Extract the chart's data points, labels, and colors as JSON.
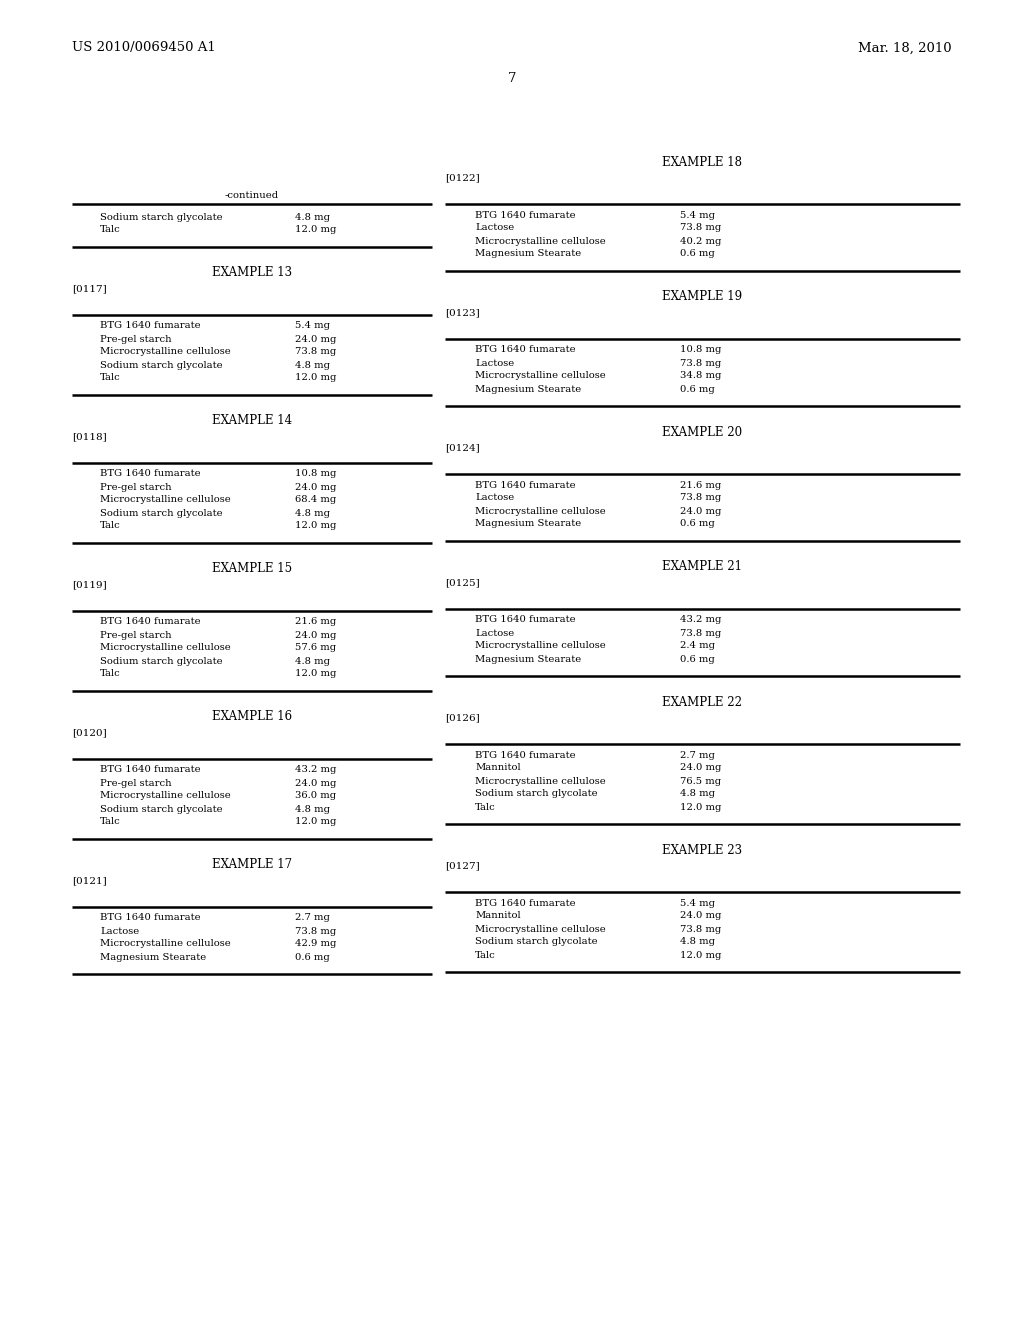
{
  "header_left": "US 2010/0069450 A1",
  "header_right": "Mar. 18, 2010",
  "page_number": "7",
  "background_color": "#ffffff",
  "text_color": "#000000",
  "left_column": {
    "continued_label": "-continued",
    "sections": [
      {
        "type": "table_end",
        "rows": [
          [
            "Sodium starch glycolate",
            "4.8 mg"
          ],
          [
            "Talc",
            "12.0 mg"
          ]
        ]
      },
      {
        "type": "example",
        "example_title": "EXAMPLE 13",
        "ref_label": "[0117]",
        "rows": [
          [
            "BTG 1640 fumarate",
            "5.4 mg"
          ],
          [
            "Pre-gel starch",
            "24.0 mg"
          ],
          [
            "Microcrystalline cellulose",
            "73.8 mg"
          ],
          [
            "Sodium starch glycolate",
            "4.8 mg"
          ],
          [
            "Talc",
            "12.0 mg"
          ]
        ]
      },
      {
        "type": "example",
        "example_title": "EXAMPLE 14",
        "ref_label": "[0118]",
        "rows": [
          [
            "BTG 1640 fumarate",
            "10.8 mg"
          ],
          [
            "Pre-gel starch",
            "24.0 mg"
          ],
          [
            "Microcrystalline cellulose",
            "68.4 mg"
          ],
          [
            "Sodium starch glycolate",
            "4.8 mg"
          ],
          [
            "Talc",
            "12.0 mg"
          ]
        ]
      },
      {
        "type": "example",
        "example_title": "EXAMPLE 15",
        "ref_label": "[0119]",
        "rows": [
          [
            "BTG 1640 fumarate",
            "21.6 mg"
          ],
          [
            "Pre-gel starch",
            "24.0 mg"
          ],
          [
            "Microcrystalline cellulose",
            "57.6 mg"
          ],
          [
            "Sodium starch glycolate",
            "4.8 mg"
          ],
          [
            "Talc",
            "12.0 mg"
          ]
        ]
      },
      {
        "type": "example",
        "example_title": "EXAMPLE 16",
        "ref_label": "[0120]",
        "rows": [
          [
            "BTG 1640 fumarate",
            "43.2 mg"
          ],
          [
            "Pre-gel starch",
            "24.0 mg"
          ],
          [
            "Microcrystalline cellulose",
            "36.0 mg"
          ],
          [
            "Sodium starch glycolate",
            "4.8 mg"
          ],
          [
            "Talc",
            "12.0 mg"
          ]
        ]
      },
      {
        "type": "example",
        "example_title": "EXAMPLE 17",
        "ref_label": "[0121]",
        "rows": [
          [
            "BTG 1640 fumarate",
            "2.7 mg"
          ],
          [
            "Lactose",
            "73.8 mg"
          ],
          [
            "Microcrystalline cellulose",
            "42.9 mg"
          ],
          [
            "Magnesium Stearate",
            "0.6 mg"
          ]
        ]
      }
    ]
  },
  "right_column": {
    "sections": [
      {
        "type": "example",
        "example_title": "EXAMPLE 18",
        "ref_label": "[0122]",
        "rows": [
          [
            "BTG 1640 fumarate",
            "5.4 mg"
          ],
          [
            "Lactose",
            "73.8 mg"
          ],
          [
            "Microcrystalline cellulose",
            "40.2 mg"
          ],
          [
            "Magnesium Stearate",
            "0.6 mg"
          ]
        ]
      },
      {
        "type": "example",
        "example_title": "EXAMPLE 19",
        "ref_label": "[0123]",
        "rows": [
          [
            "BTG 1640 fumarate",
            "10.8 mg"
          ],
          [
            "Lactose",
            "73.8 mg"
          ],
          [
            "Microcrystalline cellulose",
            "34.8 mg"
          ],
          [
            "Magnesium Stearate",
            "0.6 mg"
          ]
        ]
      },
      {
        "type": "example",
        "example_title": "EXAMPLE 20",
        "ref_label": "[0124]",
        "rows": [
          [
            "BTG 1640 fumarate",
            "21.6 mg"
          ],
          [
            "Lactose",
            "73.8 mg"
          ],
          [
            "Microcrystalline cellulose",
            "24.0 mg"
          ],
          [
            "Magnesium Stearate",
            "0.6 mg"
          ]
        ]
      },
      {
        "type": "example",
        "example_title": "EXAMPLE 21",
        "ref_label": "[0125]",
        "rows": [
          [
            "BTG 1640 fumarate",
            "43.2 mg"
          ],
          [
            "Lactose",
            "73.8 mg"
          ],
          [
            "Microcrystalline cellulose",
            "2.4 mg"
          ],
          [
            "Magnesium Stearate",
            "0.6 mg"
          ]
        ]
      },
      {
        "type": "example",
        "example_title": "EXAMPLE 22",
        "ref_label": "[0126]",
        "rows": [
          [
            "BTG 1640 fumarate",
            "2.7 mg"
          ],
          [
            "Mannitol",
            "24.0 mg"
          ],
          [
            "Microcrystalline cellulose",
            "76.5 mg"
          ],
          [
            "Sodium starch glycolate",
            "4.8 mg"
          ],
          [
            "Talc",
            "12.0 mg"
          ]
        ]
      },
      {
        "type": "example",
        "example_title": "EXAMPLE 23",
        "ref_label": "[0127]",
        "rows": [
          [
            "BTG 1640 fumarate",
            "5.4 mg"
          ],
          [
            "Mannitol",
            "24.0 mg"
          ],
          [
            "Microcrystalline cellulose",
            "73.8 mg"
          ],
          [
            "Sodium starch glycolate",
            "4.8 mg"
          ],
          [
            "Talc",
            "12.0 mg"
          ]
        ]
      }
    ]
  }
}
